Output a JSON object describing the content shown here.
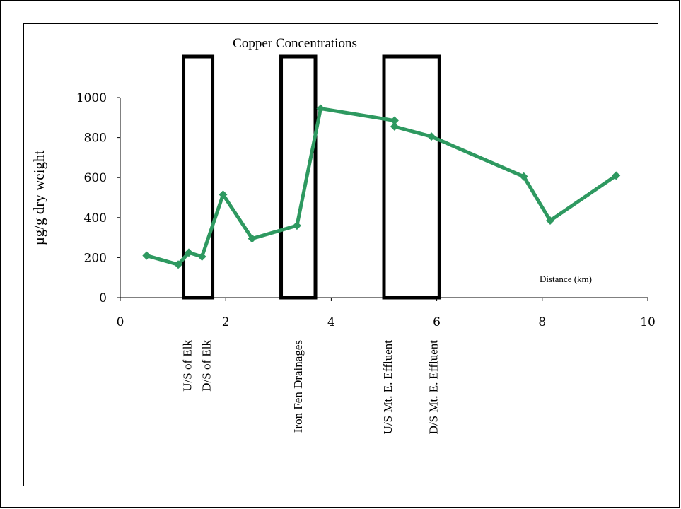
{
  "chart_data": {
    "type": "line",
    "title": "Copper Concentrations",
    "xlabel": "Distance (km)",
    "ylabel": "µg/g dry weight",
    "xlim": [
      0,
      10
    ],
    "ylim": [
      0,
      1000
    ],
    "x_ticks": [
      "0",
      "2",
      "4",
      "6",
      "8",
      "10"
    ],
    "y_ticks": [
      "0",
      "200",
      "400",
      "600",
      "800",
      "1000"
    ],
    "grid": false,
    "legend": "none",
    "series": [
      {
        "color": "#2e9960",
        "marker": "diamond",
        "x": [
          0.5,
          1.1,
          1.3,
          1.55,
          1.95,
          2.5,
          3.35,
          3.8,
          5.2,
          5.2,
          5.9,
          7.65,
          8.15,
          9.4
        ],
        "y": [
          210,
          165,
          225,
          205,
          515,
          295,
          360,
          945,
          885,
          855,
          805,
          605,
          385,
          610
        ]
      }
    ],
    "regions": [
      {
        "x_start": 1.2,
        "x_end": 1.75,
        "labels": [
          "U/S of Elk",
          "D/S of Elk"
        ]
      },
      {
        "x_start": 3.05,
        "x_end": 3.7,
        "labels": [
          "Iron Fen Drainages"
        ]
      },
      {
        "x_start": 5.0,
        "x_end": 6.05,
        "labels": [
          "U/S Mt. E. Effluent",
          "D/S Mt. E. Effluent"
        ]
      }
    ]
  }
}
